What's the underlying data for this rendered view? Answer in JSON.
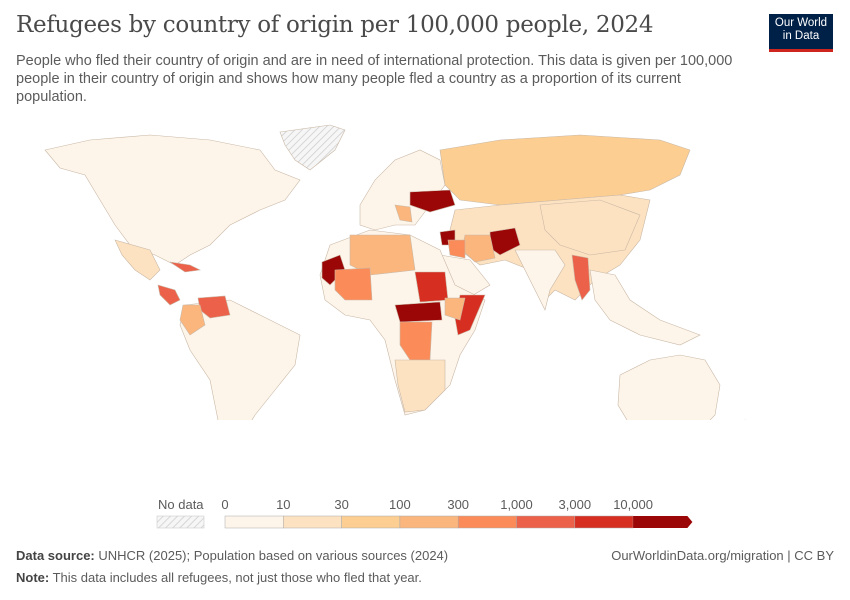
{
  "header": {
    "title": "Refugees by country of origin per 100,000 people, 2024",
    "subtitle": "People who fled their country of origin and are in need of international protection. This data is given per 100,000 people in their country of origin and shows how many people fled a country as a proportion of its current population.",
    "logo": "Our World in Data"
  },
  "legend": {
    "no_data_label": "No data",
    "ticks": [
      "0",
      "10",
      "30",
      "100",
      "300",
      "1,000",
      "3,000",
      "10,000"
    ],
    "colors": [
      "#fef5ea",
      "#fde2c1",
      "#fcce92",
      "#fbb67d",
      "#fb8c59",
      "#ec6149",
      "#d62f22",
      "#9b0707"
    ],
    "no_data_pattern": "gray-hatched"
  },
  "footer": {
    "source_label": "Data source:",
    "source_text": "UNHCR (2025); Population based on various sources (2024)",
    "note_label": "Note:",
    "note_text": "This data includes all refugees, not just those who fled that year.",
    "url": "OurWorldinData.org/migration | CC BY"
  }
}
